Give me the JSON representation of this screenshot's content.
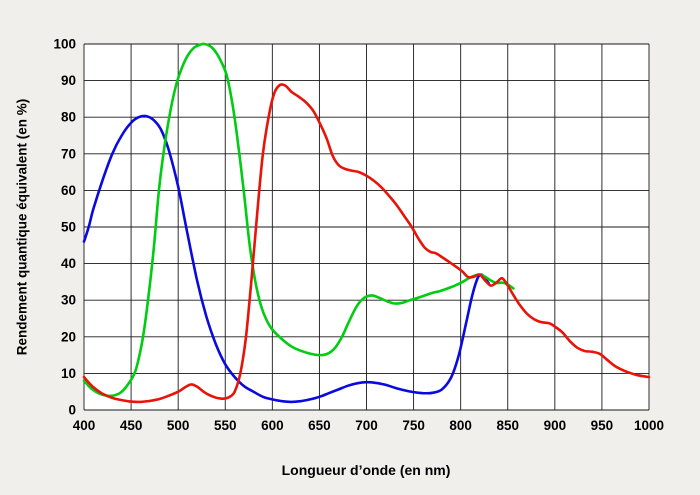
{
  "chart_data": {
    "type": "line",
    "title": "",
    "xlabel": "Longueur d’onde (en nm)",
    "ylabel": "Rendement quantique équivalent (en %)",
    "xlim": [
      400,
      1000
    ],
    "ylim": [
      0,
      100
    ],
    "x_ticks": [
      400,
      450,
      500,
      550,
      600,
      650,
      700,
      750,
      800,
      850,
      900,
      950,
      1000
    ],
    "y_ticks": [
      0,
      10,
      20,
      30,
      40,
      50,
      60,
      70,
      80,
      90,
      100
    ],
    "grid": true,
    "legend": "none",
    "plot_bg": "#ffffff",
    "grid_color": "#1a1a1a",
    "series": [
      {
        "name": "blue-channel",
        "color": "#0a0ae0",
        "points": [
          [
            400,
            46
          ],
          [
            405,
            50
          ],
          [
            410,
            55
          ],
          [
            420,
            63
          ],
          [
            430,
            70
          ],
          [
            440,
            75
          ],
          [
            450,
            78.5
          ],
          [
            458,
            80
          ],
          [
            466,
            80.3
          ],
          [
            474,
            79.2
          ],
          [
            482,
            76.5
          ],
          [
            490,
            71
          ],
          [
            500,
            61
          ],
          [
            510,
            48
          ],
          [
            520,
            35.5
          ],
          [
            530,
            25.5
          ],
          [
            540,
            18
          ],
          [
            550,
            12.5
          ],
          [
            560,
            9
          ],
          [
            570,
            6.5
          ],
          [
            580,
            5
          ],
          [
            590,
            3.6
          ],
          [
            600,
            2.9
          ],
          [
            610,
            2.4
          ],
          [
            620,
            2.2
          ],
          [
            630,
            2.4
          ],
          [
            640,
            2.9
          ],
          [
            650,
            3.6
          ],
          [
            660,
            4.6
          ],
          [
            670,
            5.6
          ],
          [
            680,
            6.6
          ],
          [
            690,
            7.3
          ],
          [
            700,
            7.6
          ],
          [
            710,
            7.4
          ],
          [
            720,
            6.9
          ],
          [
            730,
            6.1
          ],
          [
            740,
            5.4
          ],
          [
            750,
            4.9
          ],
          [
            760,
            4.6
          ],
          [
            770,
            4.7
          ],
          [
            780,
            5.6
          ],
          [
            790,
            9
          ],
          [
            798,
            15
          ],
          [
            806,
            24
          ],
          [
            812,
            31
          ],
          [
            818,
            36
          ],
          [
            822,
            37
          ],
          [
            826,
            36
          ],
          [
            830,
            34.5
          ]
        ]
      },
      {
        "name": "green-channel",
        "color": "#00cc11",
        "points": [
          [
            400,
            8
          ],
          [
            408,
            5.8
          ],
          [
            416,
            4.5
          ],
          [
            424,
            3.9
          ],
          [
            432,
            4
          ],
          [
            440,
            5
          ],
          [
            448,
            7.5
          ],
          [
            455,
            11
          ],
          [
            462,
            19
          ],
          [
            468,
            30
          ],
          [
            474,
            44
          ],
          [
            480,
            61
          ],
          [
            486,
            73
          ],
          [
            492,
            82
          ],
          [
            498,
            89
          ],
          [
            504,
            93.5
          ],
          [
            510,
            96.8
          ],
          [
            516,
            98.8
          ],
          [
            522,
            99.7
          ],
          [
            528,
            100
          ],
          [
            534,
            99.4
          ],
          [
            540,
            97.8
          ],
          [
            546,
            95
          ],
          [
            552,
            91
          ],
          [
            558,
            83
          ],
          [
            564,
            72
          ],
          [
            570,
            59
          ],
          [
            576,
            45
          ],
          [
            582,
            35
          ],
          [
            588,
            28.5
          ],
          [
            594,
            24.5
          ],
          [
            600,
            22
          ],
          [
            610,
            19.4
          ],
          [
            620,
            17.4
          ],
          [
            630,
            16.2
          ],
          [
            640,
            15.4
          ],
          [
            650,
            15
          ],
          [
            658,
            15.3
          ],
          [
            666,
            16.8
          ],
          [
            674,
            20
          ],
          [
            682,
            24.5
          ],
          [
            690,
            28.5
          ],
          [
            698,
            30.7
          ],
          [
            706,
            31.3
          ],
          [
            714,
            30.6
          ],
          [
            722,
            29.7
          ],
          [
            730,
            29.1
          ],
          [
            738,
            29.3
          ],
          [
            746,
            30
          ],
          [
            754,
            30.6
          ],
          [
            762,
            31.3
          ],
          [
            770,
            32
          ],
          [
            778,
            32.5
          ],
          [
            786,
            33.2
          ],
          [
            794,
            34
          ],
          [
            802,
            35
          ],
          [
            810,
            36.2
          ],
          [
            816,
            36.8
          ],
          [
            820,
            37
          ],
          [
            826,
            36.4
          ],
          [
            832,
            35.4
          ],
          [
            838,
            34.7
          ],
          [
            844,
            34.8
          ],
          [
            850,
            34.3
          ],
          [
            856,
            33.2
          ]
        ]
      },
      {
        "name": "red-channel",
        "color": "#e81309",
        "points": [
          [
            400,
            9
          ],
          [
            406,
            7.2
          ],
          [
            412,
            5.8
          ],
          [
            420,
            4.4
          ],
          [
            430,
            3.3
          ],
          [
            440,
            2.7
          ],
          [
            450,
            2.3
          ],
          [
            460,
            2.2
          ],
          [
            470,
            2.5
          ],
          [
            480,
            3
          ],
          [
            490,
            3.9
          ],
          [
            500,
            5
          ],
          [
            508,
            6.3
          ],
          [
            514,
            7
          ],
          [
            520,
            6.4
          ],
          [
            526,
            5.2
          ],
          [
            532,
            4.2
          ],
          [
            540,
            3.4
          ],
          [
            548,
            3.1
          ],
          [
            554,
            3.5
          ],
          [
            560,
            5
          ],
          [
            566,
            10
          ],
          [
            572,
            20
          ],
          [
            578,
            36
          ],
          [
            584,
            54
          ],
          [
            590,
            70
          ],
          [
            596,
            80
          ],
          [
            602,
            86.5
          ],
          [
            608,
            88.8
          ],
          [
            614,
            88.6
          ],
          [
            620,
            87
          ],
          [
            628,
            85.6
          ],
          [
            636,
            84
          ],
          [
            644,
            81.5
          ],
          [
            652,
            77.5
          ],
          [
            658,
            74
          ],
          [
            664,
            69.5
          ],
          [
            670,
            67
          ],
          [
            676,
            66
          ],
          [
            684,
            65.4
          ],
          [
            692,
            65
          ],
          [
            700,
            64
          ],
          [
            708,
            62.6
          ],
          [
            716,
            60.8
          ],
          [
            724,
            58.5
          ],
          [
            732,
            56
          ],
          [
            740,
            53
          ],
          [
            748,
            50
          ],
          [
            756,
            46.5
          ],
          [
            762,
            44.3
          ],
          [
            768,
            43.2
          ],
          [
            774,
            42.8
          ],
          [
            780,
            41.8
          ],
          [
            788,
            40.4
          ],
          [
            796,
            39
          ],
          [
            802,
            37.8
          ],
          [
            808,
            36.3
          ],
          [
            814,
            36.4
          ],
          [
            820,
            37
          ],
          [
            826,
            35.4
          ],
          [
            832,
            34
          ],
          [
            838,
            34.8
          ],
          [
            844,
            36
          ],
          [
            850,
            34
          ],
          [
            856,
            31.4
          ],
          [
            862,
            29
          ],
          [
            870,
            26.4
          ],
          [
            878,
            24.8
          ],
          [
            886,
            24
          ],
          [
            894,
            23.7
          ],
          [
            900,
            22.8
          ],
          [
            908,
            21.2
          ],
          [
            916,
            18.8
          ],
          [
            924,
            17
          ],
          [
            932,
            16.1
          ],
          [
            940,
            15.9
          ],
          [
            948,
            15.3
          ],
          [
            956,
            13.6
          ],
          [
            964,
            12
          ],
          [
            972,
            10.9
          ],
          [
            980,
            10.1
          ],
          [
            988,
            9.5
          ],
          [
            1000,
            9
          ]
        ]
      }
    ]
  }
}
